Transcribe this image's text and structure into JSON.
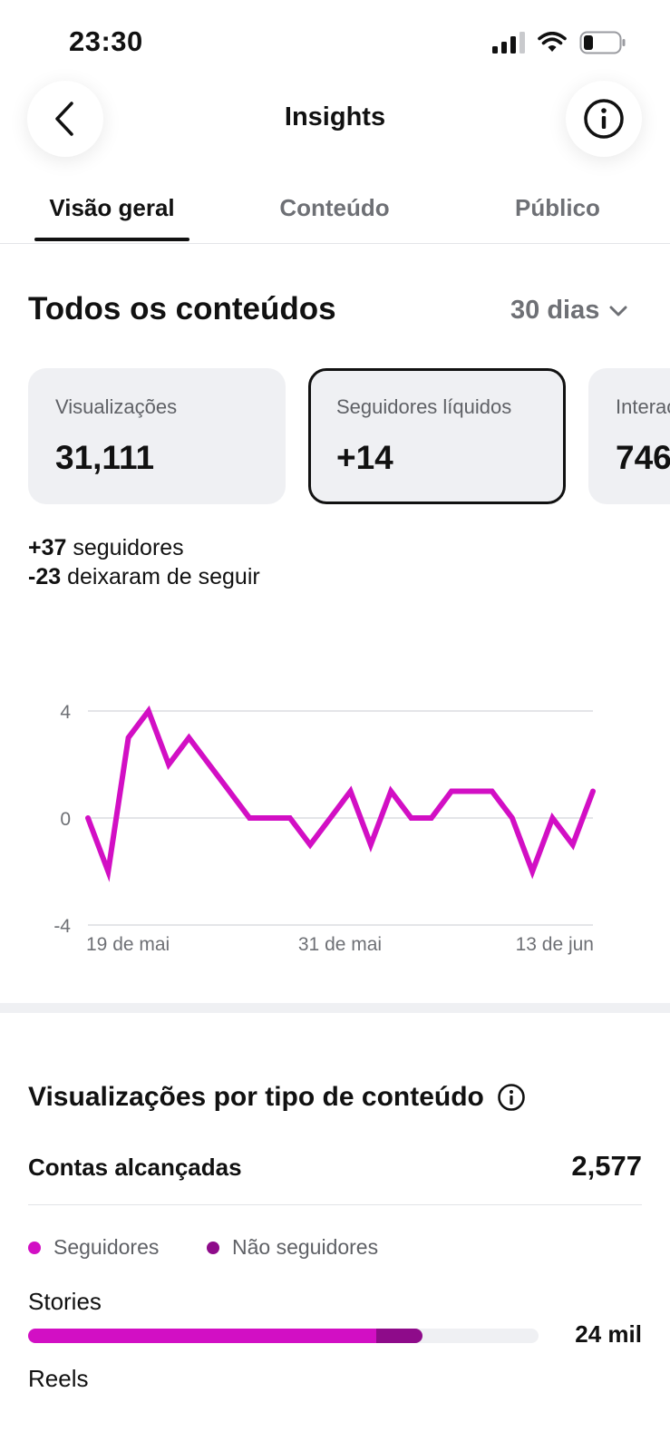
{
  "status_bar": {
    "time": "23:30"
  },
  "header": {
    "title": "Insights"
  },
  "tabs": [
    {
      "label": "Visão geral",
      "active": true
    },
    {
      "label": "Conteúdo",
      "active": false
    },
    {
      "label": "Público",
      "active": false
    }
  ],
  "overview": {
    "title": "Todos os conteúdos",
    "period": "30 dias",
    "cards": [
      {
        "label": "Visualizações",
        "value": "31,111",
        "selected": false
      },
      {
        "label": "Seguidores líquidos",
        "value": "+14",
        "selected": true
      },
      {
        "label": "Interações",
        "value": "746",
        "selected": false
      }
    ],
    "follows": {
      "gained_value": "+37",
      "gained_label": "seguidores",
      "lost_value": "-23",
      "lost_label": "deixaram de seguir"
    }
  },
  "chart_data": {
    "type": "line",
    "y_ticks": [
      "4",
      "0",
      "-4"
    ],
    "x_ticks": [
      "19 de mai",
      "31 de mai",
      "13 de jun"
    ],
    "ylim": [
      -4,
      4
    ],
    "grid": true,
    "line_color": "#d20fc4",
    "series": [
      {
        "values": [
          0,
          -2,
          3,
          4,
          2,
          3,
          2,
          1,
          0,
          0,
          0,
          -1,
          0,
          1,
          -1,
          1,
          0,
          0,
          1,
          1,
          1,
          0,
          -2,
          0,
          -1,
          1
        ]
      }
    ]
  },
  "views_by_type": {
    "title": "Visualizações por tipo de conteúdo",
    "reach_label": "Contas alcançadas",
    "reach_value": "2,577",
    "legend": [
      {
        "label": "Seguidores",
        "color": "#d20fc4"
      },
      {
        "label": "Não seguidores",
        "color": "#8e0b8a"
      }
    ],
    "rows": [
      {
        "label": "Stories",
        "value": "24 mil",
        "followers_fraction": 0.682,
        "non_followers_fraction": 0.09
      },
      {
        "label": "Reels"
      }
    ]
  }
}
